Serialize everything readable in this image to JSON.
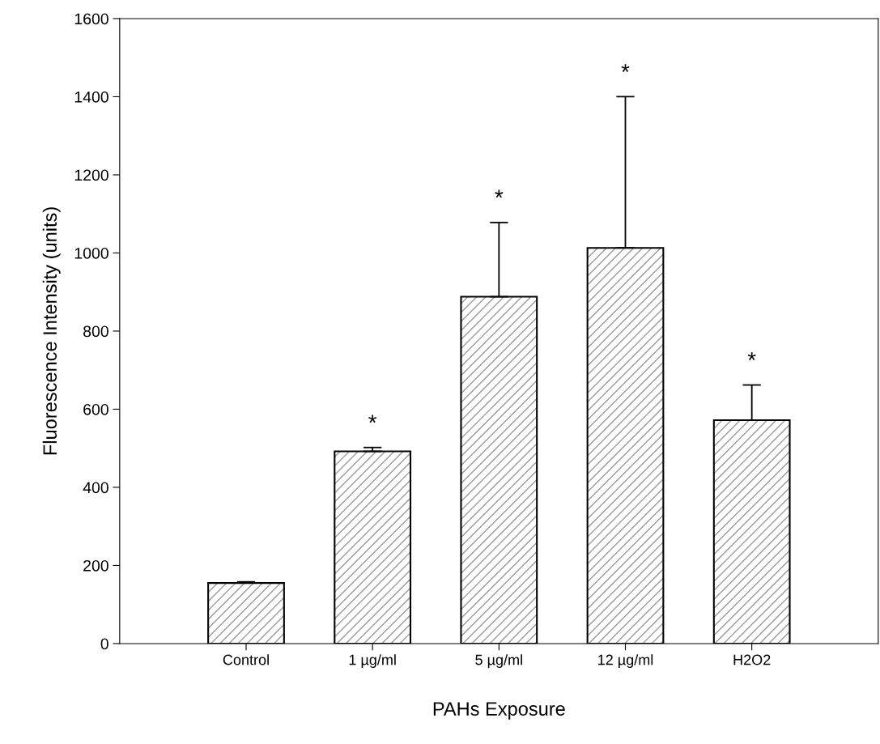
{
  "chart_data": {
    "type": "bar",
    "xlabel": "PAHs Exposure",
    "ylabel": "Fluorescence Intensity (units)",
    "categories": [
      "Control",
      "1 µg/ml",
      "5 µg/ml",
      "12 µg/ml",
      "H2O2"
    ],
    "values": [
      155,
      492,
      888,
      1013,
      572
    ],
    "errors": [
      [
        155,
        158
      ],
      [
        492,
        502
      ],
      [
        888,
        1078
      ],
      [
        1013,
        1400
      ],
      [
        572,
        662
      ]
    ],
    "color": "#000000",
    "ylim": [
      0,
      1600
    ],
    "yticks": [
      0,
      200,
      400,
      600,
      800,
      1000,
      1200,
      1400,
      1600
    ],
    "grid": false,
    "legend": false,
    "annotations": [
      {
        "text": "*",
        "x": "1 µg/ml",
        "y": 502
      },
      {
        "text": "*",
        "x": "5 µg/ml",
        "y": 1078
      },
      {
        "text": "*",
        "x": "12 µg/ml",
        "y": 1400
      },
      {
        "text": "*",
        "x": "H2O2",
        "y": 662
      }
    ]
  }
}
